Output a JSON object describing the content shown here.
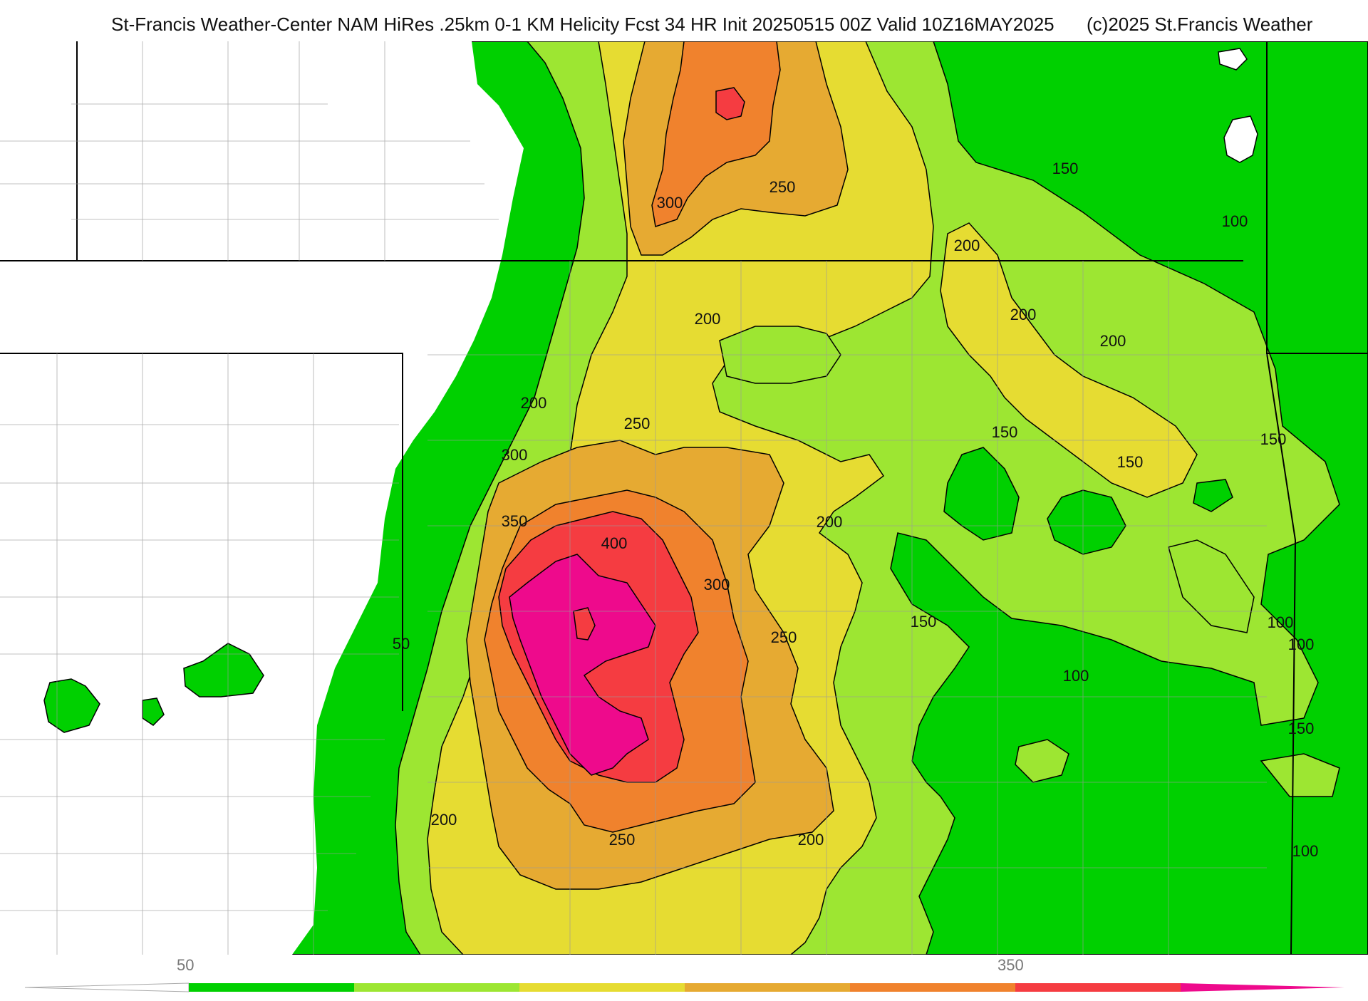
{
  "header": {
    "title": "St-Francis Weather-Center NAM HiRes .25km 0-1 KM Helicity Fcst 34 HR Init 20250515 00Z  Valid 10Z16MAY2025",
    "copyright": "(c)2025 St.Francis Weather"
  },
  "legend": {
    "tick_labels": [
      "50",
      "350"
    ],
    "colors": [
      "#00d000",
      "#9de632",
      "#e6dc32",
      "#e6aa32",
      "#f0822d",
      "#f53c41",
      "#ee0a8c"
    ]
  },
  "contour_labels": [
    "300",
    "250",
    "150",
    "100",
    "200",
    "200",
    "200",
    "200",
    "200",
    "250",
    "300",
    "150",
    "150",
    "150",
    "350",
    "400",
    "200",
    "300",
    "50",
    "150",
    "250",
    "100",
    "100",
    "100",
    "150",
    "200",
    "250",
    "200",
    "100"
  ]
}
